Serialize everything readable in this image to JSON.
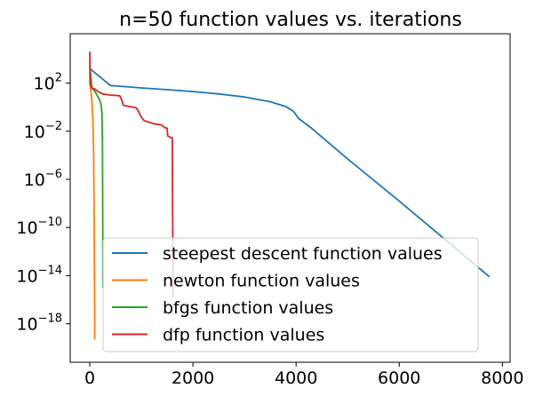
{
  "chart_data": {
    "type": "line",
    "title": "n=50 function values vs. iterations",
    "xlabel": "",
    "ylabel": "",
    "xlim": [
      -380,
      8150
    ],
    "ylim_log10": [
      -21.2,
      6.1
    ],
    "yscale": "log",
    "x_ticks": [
      {
        "value": 0,
        "label": "0"
      },
      {
        "value": 2000,
        "label": "2000"
      },
      {
        "value": 4000,
        "label": "4000"
      },
      {
        "value": 6000,
        "label": "6000"
      },
      {
        "value": 8000,
        "label": "8000"
      }
    ],
    "y_ticks": [
      {
        "exp": 2,
        "base": "10",
        "power": "2"
      },
      {
        "exp": -2,
        "base": "10",
        "power": "−2"
      },
      {
        "exp": -6,
        "base": "10",
        "power": "−6"
      },
      {
        "exp": -10,
        "base": "10",
        "power": "−10"
      },
      {
        "exp": -14,
        "base": "10",
        "power": "−14"
      },
      {
        "exp": -18,
        "base": "10",
        "power": "−18"
      }
    ],
    "legend_position": "lower-right",
    "series": [
      {
        "name": "steepest descent function values",
        "color": "#1f77b4",
        "points_x": [
          0,
          400,
          1000,
          1500,
          2000,
          2500,
          3000,
          3500,
          3800,
          3950,
          4050,
          4300,
          5000,
          6000,
          7000,
          7750
        ],
        "points_log10_y": [
          3.2,
          1.8,
          1.6,
          1.45,
          1.3,
          1.1,
          0.85,
          0.45,
          0.05,
          -0.35,
          -0.95,
          -1.75,
          -4.3,
          -7.8,
          -11.4,
          -14.1
        ]
      },
      {
        "name": "newton function values",
        "color": "#ff7f0e",
        "points_x": [
          0,
          10,
          20,
          40,
          60,
          75,
          85,
          92,
          95
        ],
        "points_log10_y": [
          4.0,
          1.8,
          1.4,
          0.5,
          -1.0,
          -4.0,
          -10.0,
          -16.0,
          -19.3
        ]
      },
      {
        "name": "bfgs function values",
        "color": "#2ca02c",
        "points_x": [
          0,
          40,
          100,
          150,
          190,
          220,
          235,
          245,
          250,
          255
        ],
        "points_log10_y": [
          3.5,
          1.6,
          1.3,
          0.9,
          0.6,
          0.2,
          -0.5,
          -3.0,
          -9.0,
          -15.0
        ]
      },
      {
        "name": "dfp function values",
        "color": "#d62728",
        "points_x": [
          0,
          5,
          40,
          100,
          160,
          250,
          400,
          580,
          620,
          650,
          700,
          900,
          950,
          1000,
          1050,
          1100,
          1150,
          1250,
          1350,
          1400,
          1450,
          1500,
          1510,
          1560,
          1600,
          1605,
          1610,
          1615
        ],
        "points_log10_y": [
          4.6,
          1.9,
          1.6,
          1.5,
          1.3,
          1.1,
          1.0,
          0.95,
          0.6,
          0.15,
          0.1,
          -0.05,
          -0.4,
          -0.85,
          -1.1,
          -1.2,
          -1.25,
          -1.4,
          -1.45,
          -1.5,
          -1.7,
          -1.75,
          -2.4,
          -2.5,
          -2.55,
          -8.0,
          -12.0,
          -15.8
        ]
      }
    ]
  }
}
